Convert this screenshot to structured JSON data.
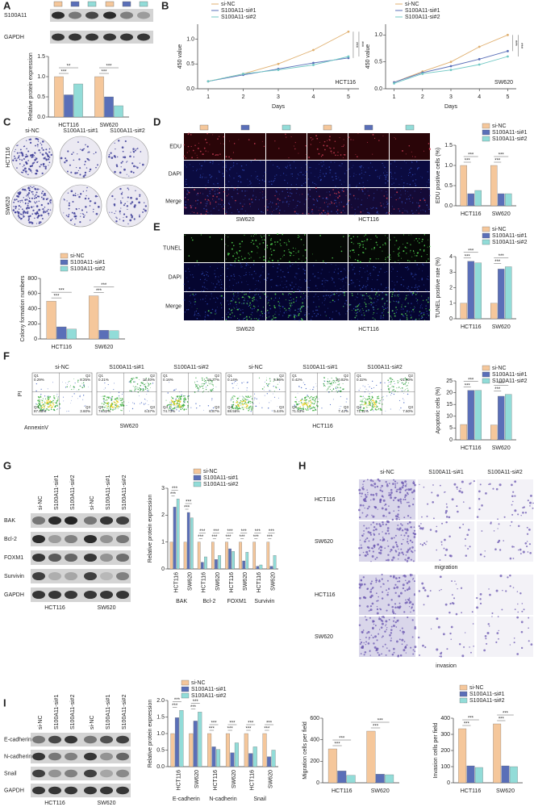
{
  "figure": {
    "letters": [
      "A",
      "B",
      "C",
      "D",
      "E",
      "F",
      "G",
      "H",
      "I"
    ],
    "groups": [
      "si-NC",
      "S100A11-si#1",
      "S100A11-si#2"
    ],
    "cells": [
      "HCT116",
      "SW620"
    ],
    "A_blots": [
      "S100A11",
      "GAPDH"
    ],
    "D_rows": [
      "EDU",
      "DAPI",
      "Merge"
    ],
    "E_rows": [
      "TUNEL",
      "DAPI",
      "Merge"
    ],
    "F_axes": [
      "PI",
      "AnnexinV"
    ],
    "F_quadrants": [
      "Q1",
      "Q2",
      "Q4",
      "Q3"
    ],
    "F_percents": [
      [
        "0.29%",
        "8.25%",
        "87.85%",
        "3.60%"
      ],
      [
        "0.21%",
        "18.40%",
        "74.82%",
        "6.57%"
      ],
      [
        "0.16%",
        "18.27%",
        "74.73%",
        "6.87%"
      ],
      [
        "0.14%",
        "5.86%",
        "88.56%",
        "5.44%"
      ],
      [
        "0.42%",
        "20.82%",
        "71.53%",
        "7.42%"
      ],
      [
        "0.32%",
        "21.00%",
        "71.11%",
        "7.60%"
      ]
    ],
    "G_blots": [
      "BAK",
      "Bcl-2",
      "FOXM1",
      "Survivin",
      "GAPDH"
    ],
    "H_sections": [
      "migration",
      "invasion"
    ],
    "I_blots": [
      "E-cadherin",
      "N-cadherin",
      "Snail",
      "GAPDH"
    ]
  },
  "chart_data": [
    {
      "type": "bar",
      "ylabel": "Relative protein expression",
      "categories": [
        "HCT116",
        "SW620"
      ],
      "series": [
        {
          "name": "si-NC",
          "color": "#f5c79b",
          "values": [
            1.0,
            1.0
          ]
        },
        {
          "name": "S100A11-si#1",
          "color": "#5a6fb8",
          "values": [
            0.55,
            0.5
          ]
        },
        {
          "name": "S100A11-si#2",
          "color": "#92dcd8",
          "values": [
            0.82,
            0.28
          ]
        }
      ],
      "ylim": [
        0,
        1.5
      ],
      "yticks": [
        {
          "value": 0,
          "label": "0.0"
        },
        0.5,
        {
          "value": 1,
          "label": "1.0"
        },
        1.5
      ],
      "annotations": [
        "***",
        "**",
        "***",
        "***"
      ],
      "legend": false
    },
    {
      "type": "line",
      "xlabel": "Days",
      "ylabel": "450 value",
      "label": "HCT116",
      "x": [
        1,
        2,
        3,
        4,
        5
      ],
      "xlim": [
        0.7,
        5.3
      ],
      "xticks": [
        1,
        2,
        3,
        4,
        5
      ],
      "series": [
        {
          "name": "si-NC",
          "color": "#e0b070",
          "values": [
            0.15,
            0.3,
            0.5,
            0.78,
            1.15
          ]
        },
        {
          "name": "S100A11-si#1",
          "color": "#5a6fb8",
          "values": [
            0.15,
            0.28,
            0.4,
            0.52,
            0.62
          ]
        },
        {
          "name": "S100A11-si#2",
          "color": "#70c8c4",
          "values": [
            0.15,
            0.3,
            0.38,
            0.48,
            0.65
          ]
        }
      ],
      "ylim": [
        0,
        1.3
      ],
      "yticks": [
        {
          "value": 0,
          "label": "0.0"
        },
        0.5,
        {
          "value": 1,
          "label": "1.0"
        }
      ],
      "annotations": [
        "***",
        "***"
      ],
      "legend": true
    },
    {
      "type": "line",
      "xlabel": "Days",
      "ylabel": "450 value",
      "label": "SW620",
      "x": [
        1,
        2,
        3,
        4,
        5
      ],
      "xlim": [
        0.7,
        5.3
      ],
      "xticks": [
        1,
        2,
        3,
        4,
        5
      ],
      "series": [
        {
          "name": "si-NC",
          "color": "#e0b070",
          "values": [
            0.12,
            0.32,
            0.5,
            0.78,
            1.0
          ]
        },
        {
          "name": "S100A11-si#1",
          "color": "#5a6fb8",
          "values": [
            0.12,
            0.3,
            0.42,
            0.55,
            0.7
          ]
        },
        {
          "name": "S100A11-si#2",
          "color": "#70c8c4",
          "values": [
            0.1,
            0.28,
            0.35,
            0.45,
            0.6
          ]
        }
      ],
      "ylim": [
        0,
        1.2
      ],
      "yticks": [
        {
          "value": 0,
          "label": "0.0"
        },
        0.5,
        {
          "value": 1,
          "label": "1.0"
        }
      ],
      "annotations": [
        "***",
        "***"
      ],
      "legend": true
    },
    {
      "type": "bar",
      "ylabel": "Colony formation numbers",
      "categories": [
        "HCT116",
        "SW620"
      ],
      "series": [
        {
          "name": "si-NC",
          "color": "#f5c79b",
          "values": [
            500,
            570
          ]
        },
        {
          "name": "S100A11-si#1",
          "color": "#5a6fb8",
          "values": [
            160,
            115
          ]
        },
        {
          "name": "S100A11-si#2",
          "color": "#92dcd8",
          "values": [
            130,
            110
          ]
        }
      ],
      "ylim": [
        0,
        800
      ],
      "yticks": [
        0,
        200,
        400,
        600,
        800
      ],
      "annotations": [
        "***",
        "***",
        "***",
        "***"
      ],
      "legend": true
    },
    {
      "type": "bar",
      "ylabel": "EDU positive cells (%)",
      "categories": [
        "HCT116",
        "SW620"
      ],
      "series": [
        {
          "name": "si-NC",
          "color": "#f5c79b",
          "values": [
            1.0,
            1.0
          ]
        },
        {
          "name": "S100A11-si#1",
          "color": "#5a6fb8",
          "values": [
            0.3,
            0.3
          ]
        },
        {
          "name": "S100A11-si#2",
          "color": "#92dcd8",
          "values": [
            0.38,
            0.3
          ]
        }
      ],
      "ylim": [
        0,
        1.5
      ],
      "yticks": [
        {
          "value": 0,
          "label": "0.0"
        },
        0.5,
        {
          "value": 1,
          "label": "1.0"
        },
        1.5
      ],
      "annotations": [
        "***",
        "***",
        "***",
        "***"
      ],
      "legend": true
    },
    {
      "type": "bar",
      "ylabel": "TUNEL positive rate (%)",
      "categories": [
        "HCT116",
        "SW620"
      ],
      "series": [
        {
          "name": "si-NC",
          "color": "#f5c79b",
          "values": [
            1.0,
            1.0
          ]
        },
        {
          "name": "S100A11-si#1",
          "color": "#5a6fb8",
          "values": [
            3.7,
            3.2
          ]
        },
        {
          "name": "S100A11-si#2",
          "color": "#92dcd8",
          "values": [
            3.6,
            3.35
          ]
        }
      ],
      "ylim": [
        0,
        4
      ],
      "yticks": [
        0,
        1,
        2,
        3,
        4
      ],
      "annotations": [
        "***",
        "***",
        "***",
        "***"
      ],
      "legend": true
    },
    {
      "type": "bar",
      "ylabel": "Apoptotic cells (%)",
      "categories": [
        "HCT116",
        "SW620"
      ],
      "series": [
        {
          "name": "si-NC",
          "color": "#f5c79b",
          "values": [
            6.5,
            6.3
          ]
        },
        {
          "name": "S100A11-si#1",
          "color": "#5a6fb8",
          "values": [
            21,
            18.5
          ]
        },
        {
          "name": "S100A11-si#2",
          "color": "#92dcd8",
          "values": [
            21,
            19.3
          ]
        }
      ],
      "ylim": [
        0,
        25
      ],
      "yticks": [
        0,
        5,
        10,
        15,
        20,
        25
      ],
      "annotations": [
        "***",
        "***",
        "***",
        "***"
      ],
      "legend": true
    },
    {
      "type": "bar",
      "ylabel": "Relative protein expression",
      "categories": [
        "HCT116",
        "SW620",
        "HCT116",
        "SW620",
        "HCT116",
        "SW620",
        "HCT116",
        "SW620"
      ],
      "groups": [
        "BAK",
        "Bcl-2",
        "FOXM1",
        "Survivin"
      ],
      "series": [
        {
          "name": "si-NC",
          "color": "#f5c79b",
          "values": [
            1,
            1,
            1,
            1,
            1,
            1,
            1,
            1
          ]
        },
        {
          "name": "S100A11-si#1",
          "color": "#5a6fb8",
          "values": [
            2.3,
            2.1,
            0.25,
            0.35,
            0.75,
            0.3,
            0.1,
            0.1
          ]
        },
        {
          "name": "S100A11-si#2",
          "color": "#92dcd8",
          "values": [
            2.6,
            1.9,
            0.45,
            0.5,
            0.65,
            0.62,
            0.15,
            0.5
          ]
        }
      ],
      "ylim": [
        0,
        3
      ],
      "yticks": [
        0,
        1,
        2,
        3
      ],
      "annotations": [
        "***",
        "***",
        "***",
        "***",
        "***",
        "***",
        "***",
        "***",
        "***",
        "***",
        "***",
        "***",
        "***",
        "***",
        "***",
        "***"
      ],
      "legend": true
    },
    {
      "type": "bar",
      "ylabel": "Relative protein expression",
      "categories": [
        "HCT116",
        "SW620",
        "HCT116",
        "SW620",
        "HCT116",
        "SW620"
      ],
      "groups": [
        "E-cadherin",
        "N-cadherin",
        "Snail"
      ],
      "series": [
        {
          "name": "si-NC",
          "color": "#f5c79b",
          "values": [
            1,
            1,
            1,
            1,
            1,
            1
          ]
        },
        {
          "name": "S100A11-si#1",
          "color": "#5a6fb8",
          "values": [
            1.48,
            1.38,
            0.6,
            0.42,
            0.4,
            0.3
          ]
        },
        {
          "name": "S100A11-si#2",
          "color": "#92dcd8",
          "values": [
            1.7,
            1.65,
            0.52,
            0.72,
            0.6,
            0.5
          ]
        }
      ],
      "ylim": [
        0,
        2
      ],
      "yticks": [
        {
          "value": 0,
          "label": "0.0"
        },
        0.5,
        {
          "value": 1,
          "label": "1.0"
        },
        1.5,
        {
          "value": 2,
          "label": "2.0"
        }
      ],
      "annotations": [
        "***",
        "***",
        "***",
        "***",
        "***",
        "***",
        "***",
        "***",
        "***",
        "***",
        "***",
        "***"
      ],
      "legend": true
    },
    {
      "type": "bar",
      "ylabel": "Migration cells per field",
      "categories": [
        "HCT116",
        "SW620"
      ],
      "series": [
        {
          "name": "si-NC",
          "color": "#f5c79b",
          "values": [
            315,
            480
          ]
        },
        {
          "name": "S100A11-si#1",
          "color": "#5a6fb8",
          "values": [
            110,
            80
          ]
        },
        {
          "name": "S100A11-si#2",
          "color": "#92dcd8",
          "values": [
            70,
            75
          ]
        }
      ],
      "ylim": [
        0,
        600
      ],
      "yticks": [
        0,
        200,
        400,
        600
      ],
      "annotations": [
        "***",
        "***",
        "***",
        "***"
      ],
      "legend": false
    },
    {
      "type": "bar",
      "ylabel": "Invasion cells per field",
      "categories": [
        "HCT116",
        "SW620"
      ],
      "series": [
        {
          "name": "si-NC",
          "color": "#f5c79b",
          "values": [
            335,
            365
          ]
        },
        {
          "name": "S100A11-si#1",
          "color": "#5a6fb8",
          "values": [
            105,
            105
          ]
        },
        {
          "name": "S100A11-si#2",
          "color": "#92dcd8",
          "values": [
            95,
            100
          ]
        }
      ],
      "ylim": [
        0,
        400
      ],
      "yticks": [
        0,
        100,
        200,
        300,
        400
      ],
      "annotations": [
        "***",
        "***",
        "***",
        "***"
      ],
      "legend": true
    }
  ]
}
